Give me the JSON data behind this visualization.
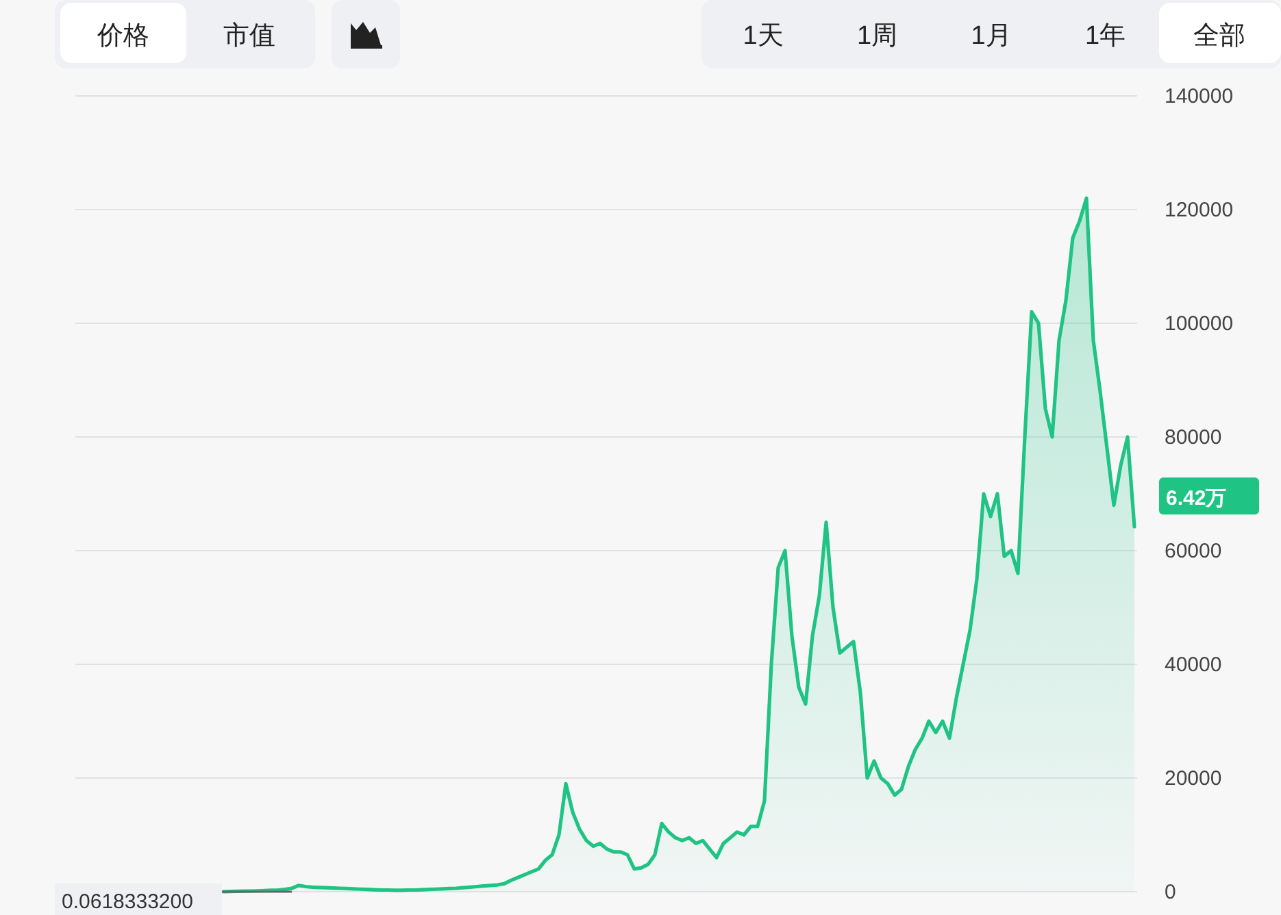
{
  "chart_data": {
    "type": "area",
    "categories": [
      null,
      null,
      null,
      null,
      null,
      null,
      null,
      null,
      null,
      null,
      null,
      null,
      null,
      null,
      null,
      null,
      null,
      null,
      null,
      null,
      null,
      null,
      null,
      null,
      null,
      null,
      null,
      null,
      null,
      null,
      null,
      null,
      null,
      null,
      null,
      null,
      null,
      null,
      null,
      null,
      null,
      null,
      null,
      null,
      null,
      null,
      null,
      null,
      null,
      null,
      null,
      null,
      null,
      null,
      null,
      null,
      null,
      null,
      null,
      null,
      null,
      null,
      null,
      null,
      null,
      null,
      null,
      null,
      null,
      null,
      null,
      null,
      null,
      null,
      null,
      null,
      null,
      null,
      null,
      null,
      null,
      null,
      null,
      null,
      null,
      null,
      null,
      null,
      null,
      null,
      null,
      null,
      null,
      null,
      null,
      null,
      null,
      null,
      null,
      null,
      null,
      null,
      null,
      null,
      null,
      null,
      null,
      null,
      null,
      null,
      null,
      null,
      null,
      null,
      null,
      null,
      null,
      null,
      null,
      null,
      null,
      null,
      null,
      null,
      null,
      null,
      null,
      null,
      null,
      null,
      null,
      null,
      null,
      null
    ],
    "series": [
      {
        "color": "#1fc384",
        "values": [
          0,
          50,
          80,
          100,
          120,
          150,
          200,
          250,
          300,
          400,
          600,
          1100,
          900,
          800,
          750,
          700,
          650,
          600,
          550,
          500,
          450,
          400,
          350,
          300,
          300,
          250,
          250,
          300,
          300,
          350,
          400,
          450,
          500,
          550,
          600,
          700,
          800,
          900,
          1000,
          1100,
          1200,
          1400,
          2000,
          2500,
          3000,
          3500,
          4000,
          5500,
          6500,
          10000,
          19000,
          14000,
          11000,
          9000,
          8000,
          8500,
          7500,
          7000,
          7000,
          6500,
          4000,
          4200,
          4800,
          6500,
          12000,
          10500,
          9500,
          9000,
          9500,
          8500,
          9000,
          7500,
          6000,
          8500,
          9500,
          10500,
          10000,
          11500,
          11500,
          16000,
          40000,
          57000,
          60000,
          45000,
          36000,
          33000,
          45000,
          52000,
          65000,
          50000,
          42000,
          43000,
          44000,
          35000,
          20000,
          23000,
          20000,
          19000,
          17000,
          18000,
          22000,
          25000,
          27000,
          30000,
          28000,
          30000,
          27000,
          34000,
          40000,
          46000,
          55000,
          70000,
          66000,
          70000,
          59000,
          60000,
          56000,
          80000,
          102000,
          100000,
          85000,
          80000,
          97000,
          104000,
          115000,
          118000,
          122000,
          97000,
          88000,
          78000,
          68000,
          75000,
          80000,
          64200
        ]
      }
    ],
    "ylim": [
      0,
      140000
    ],
    "yticks": [
      0,
      20000,
      40000,
      60000,
      80000,
      100000,
      120000,
      140000
    ],
    "grid": "y",
    "tick_labels": "y",
    "annotations": [
      "价格",
      "市值",
      "1天",
      "1周",
      "1月",
      "1年",
      "全部",
      "0.0618333200",
      "6.42万"
    ]
  }
}
